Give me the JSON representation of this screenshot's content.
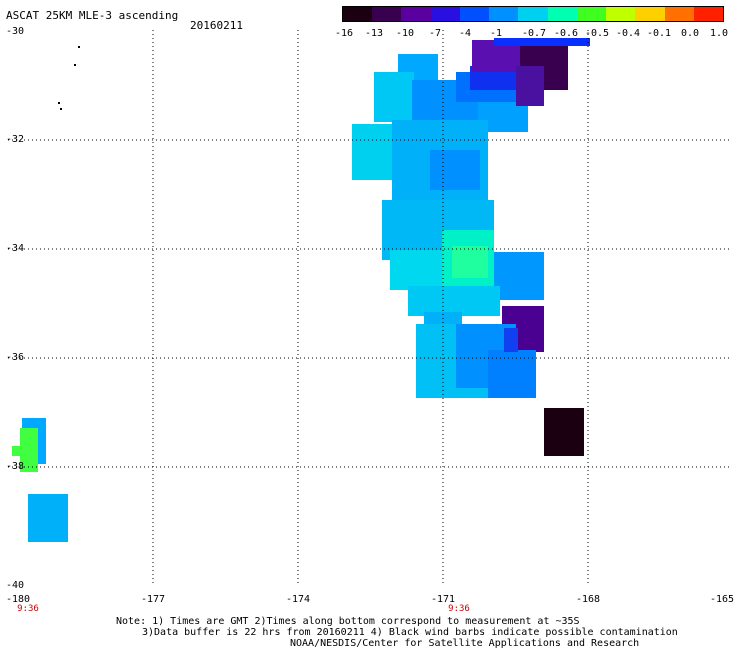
{
  "title": "ASCAT 25KM MLE-3 ascending",
  "date": "20160211",
  "colorbar": {
    "labels": [
      "-16",
      "-13",
      "-10",
      "-7",
      "-4",
      "-1",
      "-0.7",
      "-0.6",
      "-0.5",
      "-0.4",
      "-0.1",
      "0.0",
      "1.0"
    ],
    "colors": [
      "#1a0010",
      "#3a0050",
      "#5a00a0",
      "#2a10e0",
      "#0050ff",
      "#0090ff",
      "#00d0f0",
      "#00ffb0",
      "#40ff20",
      "#c0ff00",
      "#ffd000",
      "#ff7000",
      "#ff2000"
    ]
  },
  "axes": {
    "y_labels": [
      "-30",
      "-32",
      "-34",
      "-36",
      "-38",
      "-40"
    ],
    "x_labels": [
      "-180",
      "-177",
      "-174",
      "-171",
      "-168",
      "-165"
    ],
    "time_labels": [
      "9:36",
      "9:36"
    ]
  },
  "notes": {
    "line1": "Note: 1) Times are GMT 2)Times along bottom correspond to measurement at ~35S",
    "line2": "3)Data buffer is 22 hrs from 20160211 4) Black wind barbs indicate possible contamination",
    "line3": "NOAA/NESDIS/Center for Satellite Applications and Research"
  },
  "colors": {
    "grid": "#000000",
    "time_label": "#cc0000"
  }
}
